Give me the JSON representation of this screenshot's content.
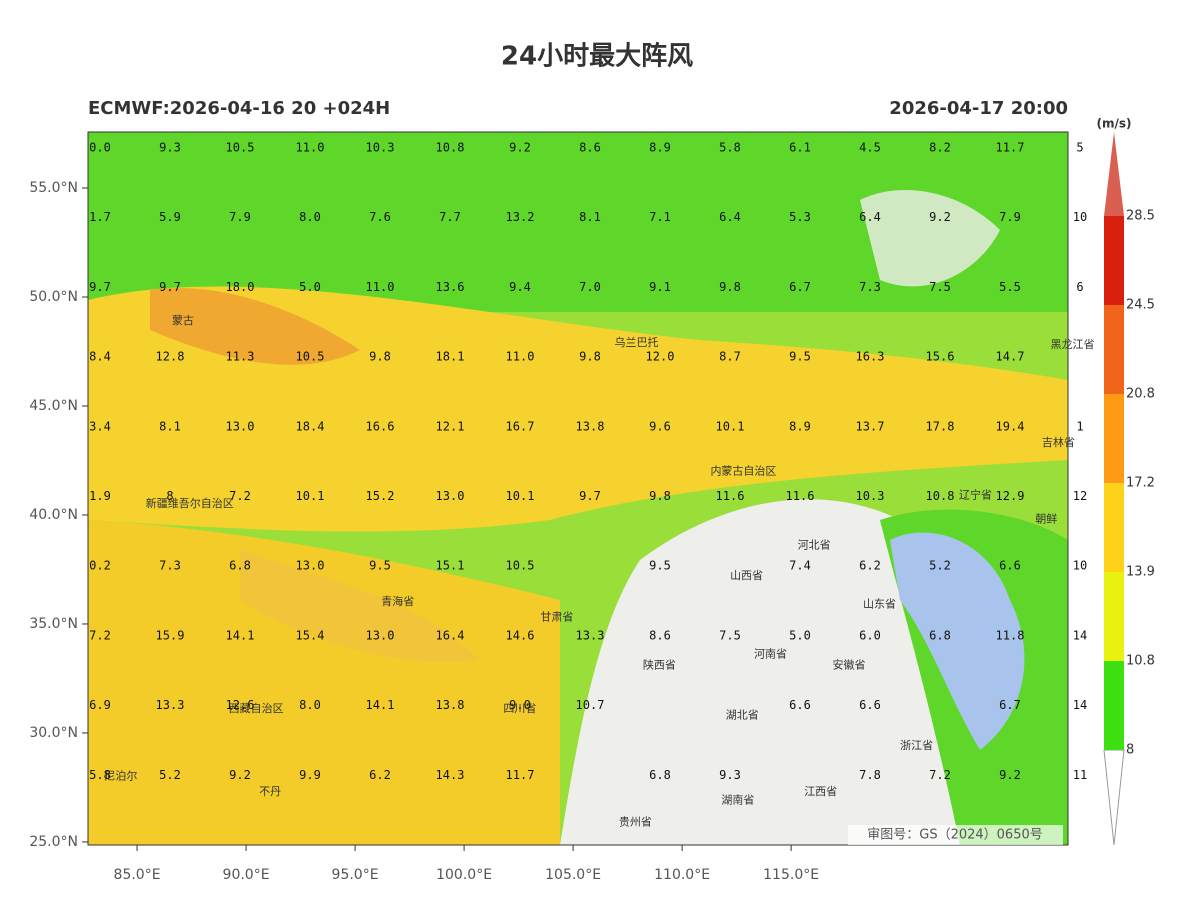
{
  "title": "24小时最大阵风",
  "subtitle_left": "ECMWF:2026-04-16 20 +024H",
  "subtitle_right": "2026-04-17 20:00",
  "map": {
    "lonlim": [
      82.75,
      127.7
    ],
    "latlim": [
      24.86,
      57.57
    ],
    "xticks": [
      {
        "value": 85,
        "label": "85.0°E"
      },
      {
        "value": 90,
        "label": "90.0°E"
      },
      {
        "value": 95,
        "label": "95.0°E"
      },
      {
        "value": 100,
        "label": "100.0°E"
      },
      {
        "value": 105,
        "label": "105.0°E"
      },
      {
        "value": 110,
        "label": "110.0°E"
      },
      {
        "value": 115,
        "label": "115.0°E"
      }
    ],
    "yticks": [
      {
        "value": 55,
        "label": "55.0°N"
      },
      {
        "value": 50,
        "label": "50.0°N"
      },
      {
        "value": 45,
        "label": "45.0°N"
      },
      {
        "value": 40,
        "label": "40.0°N"
      },
      {
        "value": 35,
        "label": "35.0°N"
      },
      {
        "value": 30,
        "label": "30.0°N"
      },
      {
        "value": 25,
        "label": "25.0°N"
      }
    ],
    "station_values": [
      [
        "0.0",
        "9.3",
        "10.5",
        "11.0",
        "10.3",
        "10.8",
        "9.2",
        "8.6",
        "8.9",
        "5.8",
        "6.1",
        "4.5",
        "8.2",
        "11.7",
        "5"
      ],
      [
        "1.7",
        "5.9",
        "7.9",
        "8.0",
        "7.6",
        "7.7",
        "13.2",
        "8.1",
        "7.1",
        "6.4",
        "5.3",
        "6.4",
        "9.2",
        "7.9",
        "10"
      ],
      [
        "9.7",
        "9.7",
        "18.0",
        "5.0",
        "11.0",
        "13.6",
        "9.4",
        "7.0",
        "9.1",
        "9.8",
        "6.7",
        "7.3",
        "7.5",
        "5.5",
        "6"
      ],
      [
        "8.4",
        "12.8",
        "11.3",
        "10.5",
        "9.8",
        "18.1",
        "11.0",
        "9.8",
        "12.0",
        "8.7",
        "9.5",
        "16.3",
        "15.6",
        "14.7",
        null
      ],
      [
        "3.4",
        "8.1",
        "13.0",
        "18.4",
        "16.6",
        "12.1",
        "16.7",
        "13.8",
        "9.6",
        "10.1",
        "8.9",
        "13.7",
        "17.8",
        "19.4",
        "1"
      ],
      [
        "1.9",
        "8",
        "7.2",
        "10.1",
        "15.2",
        "13.0",
        "10.1",
        "9.7",
        "9.8",
        "11.6",
        "11.6",
        "10.3",
        "10.8",
        "12.9",
        "12"
      ],
      [
        "0.2",
        "7.3",
        "6.8",
        "13.0",
        "9.5",
        "15.1",
        "10.5",
        null,
        "9.5",
        null,
        "7.4",
        "6.2",
        "5.2",
        "6.6",
        "10"
      ],
      [
        "7.2",
        "15.9",
        "14.1",
        "15.4",
        "13.0",
        "16.4",
        "14.6",
        "13.3",
        "8.6",
        "7.5",
        "5.0",
        "6.0",
        "6.8",
        "11.8",
        "14"
      ],
      [
        "6.9",
        "13.3",
        "12.6",
        "8.0",
        "14.1",
        "13.8",
        "9.0",
        "10.7",
        null,
        null,
        "6.6",
        "6.6",
        null,
        "6.7",
        "14"
      ],
      [
        "5.8",
        "5.2",
        "9.2",
        "9.9",
        "6.2",
        "14.3",
        "11.7",
        null,
        "6.8",
        "9.3",
        null,
        "7.8",
        "7.2",
        "9.2",
        "11"
      ]
    ],
    "places": [
      {
        "name": "蒙古",
        "lon": 86.6,
        "lat": 48.9
      },
      {
        "name": "乌兰巴托",
        "lon": 106.9,
        "lat": 47.9
      },
      {
        "name": "内蒙古自治区",
        "lon": 111.3,
        "lat": 42.0
      },
      {
        "name": "新疆维吾尔自治区",
        "lon": 85.4,
        "lat": 40.5
      },
      {
        "name": "青海省",
        "lon": 96.2,
        "lat": 36.0
      },
      {
        "name": "甘肃省",
        "lon": 103.5,
        "lat": 35.3
      },
      {
        "name": "四川省",
        "lon": 101.8,
        "lat": 31.1
      },
      {
        "name": "西藏自治区",
        "lon": 89.2,
        "lat": 31.1
      },
      {
        "name": "山西省",
        "lon": 112.2,
        "lat": 37.2
      },
      {
        "name": "河北省",
        "lon": 115.3,
        "lat": 38.6
      },
      {
        "name": "山东省",
        "lon": 118.3,
        "lat": 35.9
      },
      {
        "name": "河南省",
        "lon": 113.3,
        "lat": 33.6
      },
      {
        "name": "陕西省",
        "lon": 108.2,
        "lat": 33.1
      },
      {
        "name": "湖北省",
        "lon": 112.0,
        "lat": 30.8
      },
      {
        "name": "安徽省",
        "lon": 116.9,
        "lat": 33.1
      },
      {
        "name": "江西省",
        "lon": 115.6,
        "lat": 27.3
      },
      {
        "name": "湖南省",
        "lon": 111.8,
        "lat": 26.9
      },
      {
        "name": "贵州省",
        "lon": 107.1,
        "lat": 25.9
      },
      {
        "name": "浙江省",
        "lon": 120.0,
        "lat": 29.4
      },
      {
        "name": "辽宁省",
        "lon": 122.7,
        "lat": 40.9
      },
      {
        "name": "吉林省",
        "lon": 126.5,
        "lat": 43.3
      },
      {
        "name": "黑龙江省",
        "lon": 126.9,
        "lat": 47.8
      },
      {
        "name": "朝鲜",
        "lon": 126.2,
        "lat": 39.8
      },
      {
        "name": "尼泊尔",
        "lon": 83.5,
        "lat": 28.0
      },
      {
        "name": "不丹",
        "lon": 90.6,
        "lat": 27.3
      }
    ],
    "credit": "审图号：GS（2024）0650号"
  },
  "colorbar": {
    "unit": "(m/s)",
    "ticks": [
      8,
      10.8,
      13.9,
      17.2,
      20.8,
      24.5,
      28.5
    ],
    "colors": [
      "#3ee012",
      "#e8f20e",
      "#ffd21a",
      "#ff9a14",
      "#f0651a",
      "#d8200e",
      "#d96050"
    ]
  }
}
